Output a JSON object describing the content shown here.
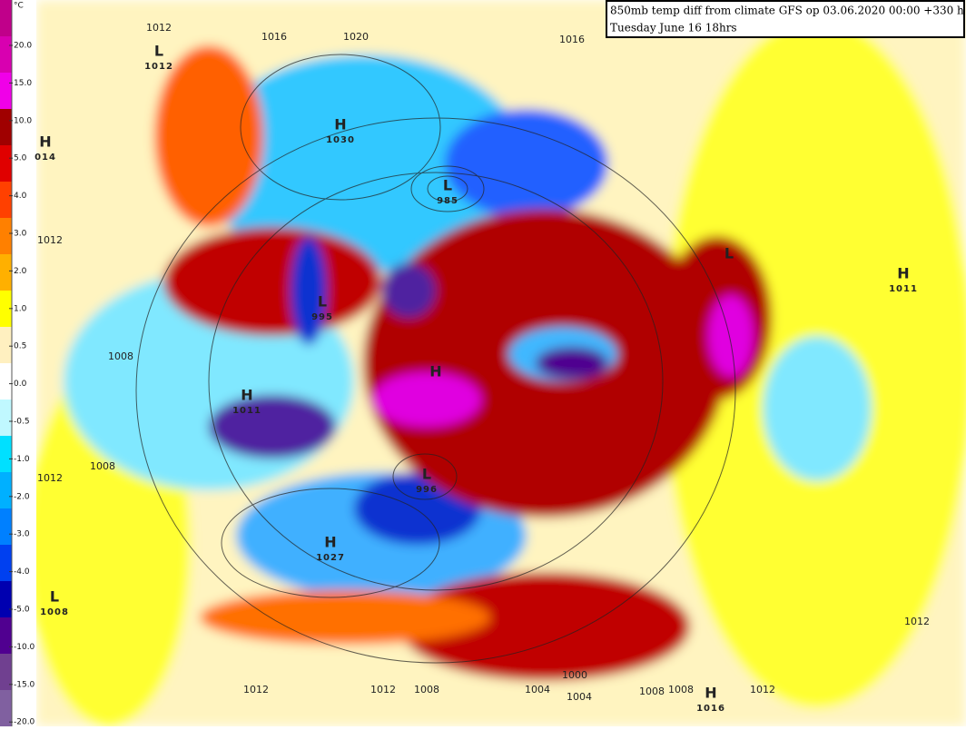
{
  "header": {
    "line1": "850mb temp diff from climate GFS op 03.06.2020 00:00 +330 h",
    "line2": "Tuesday June 16 18hrs"
  },
  "colorbar": {
    "unit": "°C",
    "ticks": [
      "20.0",
      "15.0",
      "10.0",
      "5.0",
      "4.0",
      "3.0",
      "2.0",
      "1.0",
      "0.5",
      "0.0",
      "-0.5",
      "-1.0",
      "-2.0",
      "-3.0",
      "-4.0",
      "-5.0",
      "-10.0",
      "-15.0",
      "-20.0"
    ],
    "colors": [
      "#c0008a",
      "#d800b0",
      "#f000e8",
      "#a00000",
      "#e00000",
      "#ff4000",
      "#ff8000",
      "#ffb000",
      "#ffff00",
      "#fff0c0",
      "#ffffff",
      "#c0f8ff",
      "#00e0ff",
      "#00b0ff",
      "#0080ff",
      "#0040f0",
      "#0000b0",
      "#500090",
      "#704090",
      "#8060a0"
    ]
  },
  "centers": [
    {
      "letter": "H",
      "value": "014"
    },
    {
      "letter": "L",
      "value": "1012"
    },
    {
      "letter": "H",
      "value": "1030"
    },
    {
      "letter": "L",
      "value": "985"
    },
    {
      "letter": "L",
      "value": "995"
    },
    {
      "letter": "L"
    },
    {
      "letter": "H",
      "value": "1011"
    },
    {
      "letter": "H"
    },
    {
      "letter": "H",
      "value": "1011"
    },
    {
      "letter": "L",
      "value": "996"
    },
    {
      "letter": "H",
      "value": "1027"
    },
    {
      "letter": "L",
      "value": "1008"
    },
    {
      "letter": "H",
      "value": "1016"
    }
  ],
  "isobar_labels": [
    "1012",
    "1016",
    "1020",
    "1016",
    "1012",
    "1008",
    "1008",
    "1012",
    "1012",
    "1012",
    "1012",
    "1008",
    "1004",
    "1004",
    "1008",
    "1008",
    "1012",
    "1000"
  ]
}
